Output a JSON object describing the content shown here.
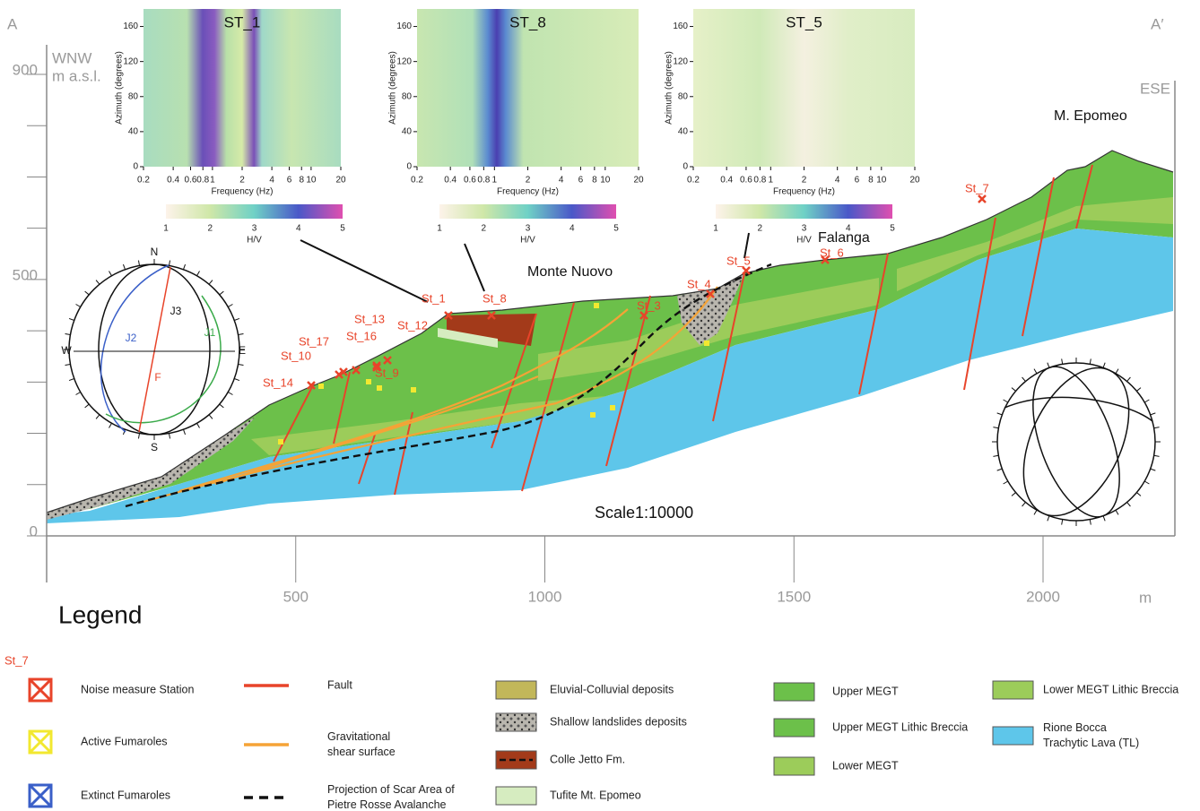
{
  "section": {
    "start_label": "A",
    "end_label": "A′",
    "west": "WNW",
    "unit_y": "m a.s.l.",
    "east": "ESE",
    "peak": "M. Epomeo",
    "place_1": "Monte Nuovo",
    "place_2": "Falanga",
    "scale": "Scale1:10000",
    "unit_x": "m",
    "y_ticks": [
      0,
      100,
      200,
      300,
      400,
      500,
      600,
      700,
      800,
      900
    ],
    "y_labels": [
      900,
      500,
      0
    ],
    "x_labels": [
      500,
      1000,
      1500,
      2000
    ]
  },
  "stations": [
    "St_14",
    "St_10",
    "St_17",
    "St_16",
    "St_13",
    "St_12",
    "St_9",
    "St_1",
    "St_8",
    "St_3",
    "St_4",
    "St_5",
    "St_6",
    "St_7"
  ],
  "stereonet": {
    "labels": [
      "N",
      "S",
      "W",
      "E",
      "J1",
      "J2",
      "J3",
      "F"
    ]
  },
  "insets": [
    {
      "title": "ST_1"
    },
    {
      "title": "ST_8"
    },
    {
      "title": "ST_5"
    }
  ],
  "inset_axes": {
    "y_title": "Azimuth (degrees)",
    "y_ticks": [
      0,
      40,
      80,
      120,
      160
    ],
    "x_title": "Frequency (Hz)",
    "x_ticks": [
      0.2,
      0.4,
      0.6,
      0.8,
      1,
      2,
      4,
      6,
      8,
      10,
      20
    ],
    "colorbar_ticks": [
      1,
      2,
      3,
      4,
      5
    ],
    "colorbar_title": "H/V"
  },
  "legend": {
    "title": "Legend",
    "sample_label": "St_7",
    "items": [
      {
        "lines": [
          "Noise measure Station"
        ]
      },
      {
        "lines": [
          "Active Fumaroles"
        ]
      },
      {
        "lines": [
          "Extinct Fumaroles"
        ]
      },
      {
        "lines": [
          "Fault"
        ]
      },
      {
        "lines": [
          "Gravitational",
          "shear surface"
        ]
      },
      {
        "lines": [
          "Projection of Scar Area of",
          "Pietre Rosse Avalanche"
        ]
      },
      {
        "lines": [
          "Eluvial-Colluvial deposits"
        ]
      },
      {
        "lines": [
          "Shallow landslides deposits"
        ]
      },
      {
        "lines": [
          "Colle Jetto Fm."
        ]
      },
      {
        "lines": [
          "Tufite Mt. Epomeo"
        ]
      },
      {
        "lines": [
          "Upper MEGT"
        ]
      },
      {
        "lines": [
          "Upper MEGT Lithic Breccia"
        ]
      },
      {
        "lines": [
          "Lower MEGT"
        ]
      },
      {
        "lines": [
          "Lower MEGT Lithic Breccia"
        ]
      },
      {
        "lines": [
          "Rione Bocca",
          "Trachytic Lava (TL)"
        ]
      }
    ]
  }
}
